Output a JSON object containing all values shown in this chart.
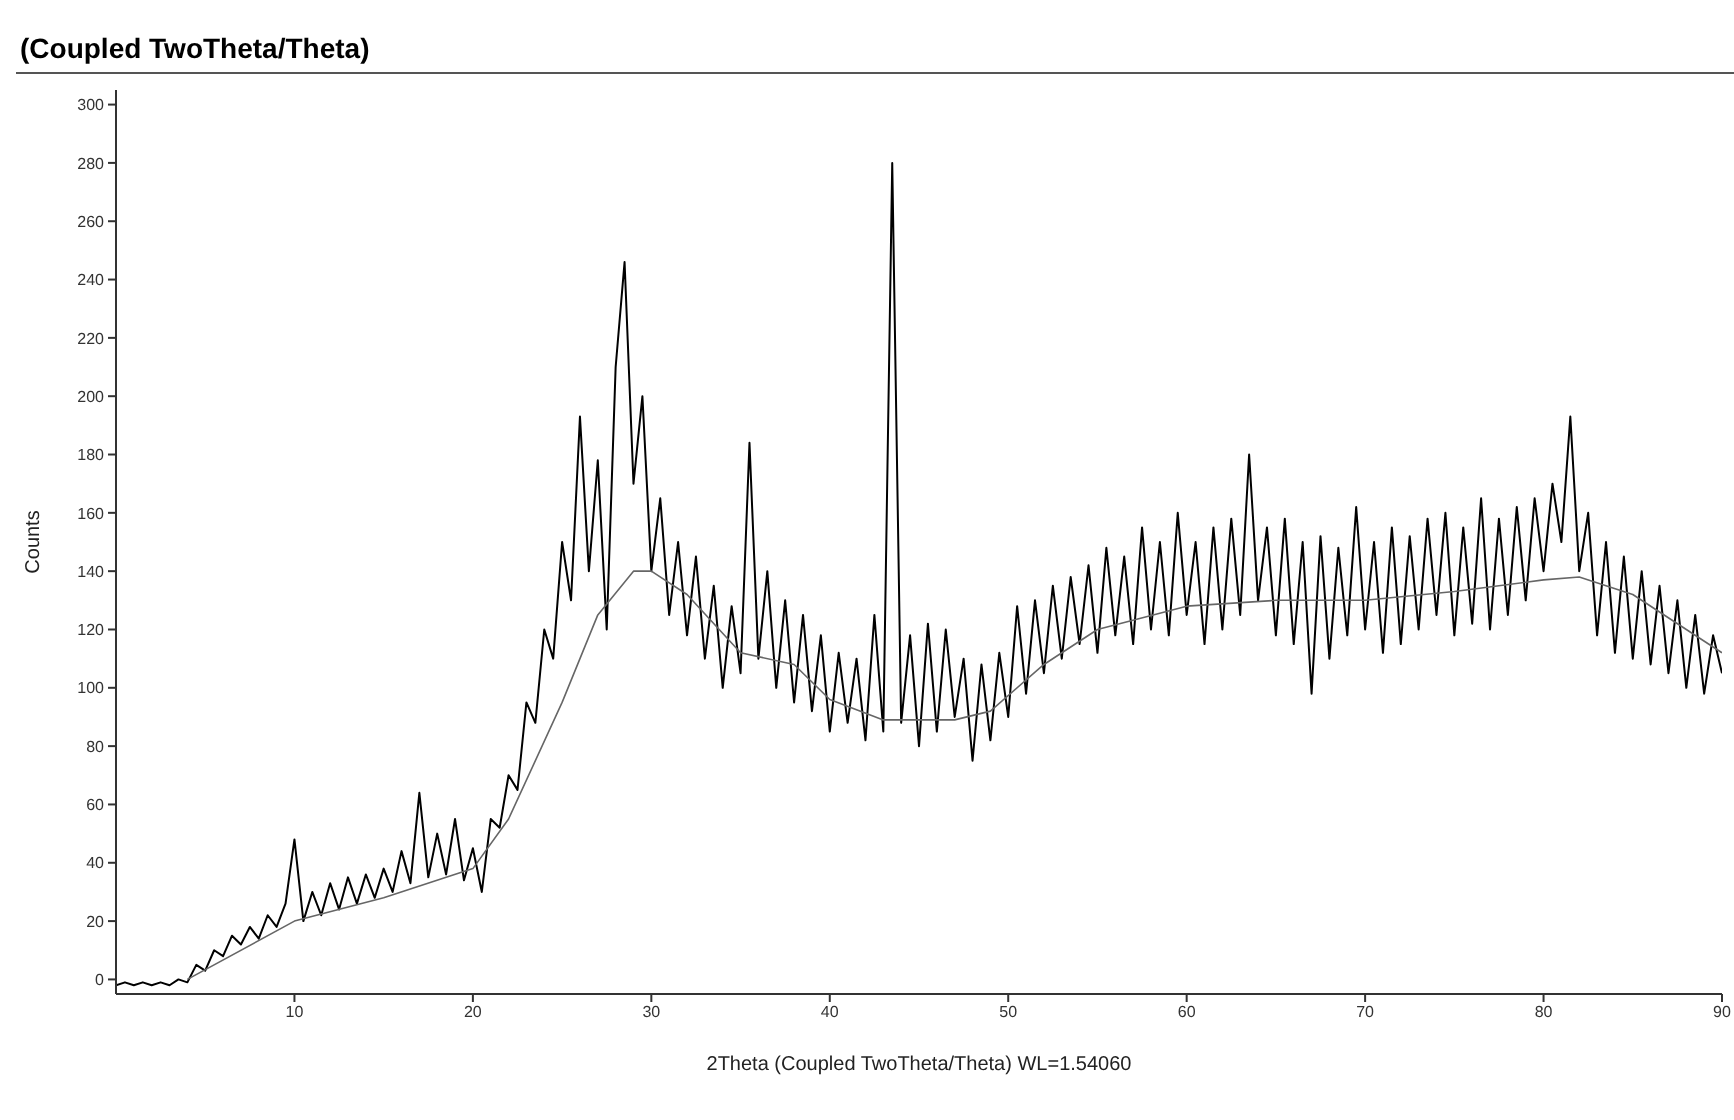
{
  "chart_data": {
    "type": "line",
    "title": "(Coupled TwoTheta/Theta)",
    "xlabel": "2Theta (Coupled TwoTheta/Theta) WL=1.54060",
    "ylabel": "Counts",
    "xlim": [
      0,
      90
    ],
    "xticks": [
      10,
      20,
      30,
      40,
      50,
      60,
      70,
      80,
      90
    ],
    "ylim": [
      -5,
      305
    ],
    "yticks": [
      0,
      20,
      40,
      60,
      80,
      100,
      120,
      140,
      160,
      180,
      200,
      220,
      240,
      260,
      280,
      300
    ],
    "grid": false,
    "legend": false,
    "marker": "none",
    "line_style": "solid",
    "series": [
      {
        "color": "#000000",
        "x": [
          0,
          0.5,
          1,
          1.5,
          2,
          2.5,
          3,
          3.5,
          4,
          4.5,
          5,
          5.5,
          6,
          6.5,
          7,
          7.5,
          8,
          8.5,
          9,
          9.5,
          10,
          10.5,
          11,
          11.5,
          12,
          12.5,
          13,
          13.5,
          14,
          14.5,
          15,
          15.5,
          16,
          16.5,
          17,
          17.5,
          18,
          18.5,
          19,
          19.5,
          20,
          20.5,
          21,
          21.5,
          22,
          22.5,
          23,
          23.5,
          24,
          24.5,
          25,
          25.5,
          26,
          26.5,
          27,
          27.5,
          28,
          28.5,
          29,
          29.5,
          30,
          30.5,
          31,
          31.5,
          32,
          32.5,
          33,
          33.5,
          34,
          34.5,
          35,
          35.5,
          36,
          36.5,
          37,
          37.5,
          38,
          38.5,
          39,
          39.5,
          40,
          40.5,
          41,
          41.5,
          42,
          42.5,
          43,
          43.5,
          44,
          44.5,
          45,
          45.5,
          46,
          46.5,
          47,
          47.5,
          48,
          48.5,
          49,
          49.5,
          50,
          50.5,
          51,
          51.5,
          52,
          52.5,
          53,
          53.5,
          54,
          54.5,
          55,
          55.5,
          56,
          56.5,
          57,
          57.5,
          58,
          58.5,
          59,
          59.5,
          60,
          60.5,
          61,
          61.5,
          62,
          62.5,
          63,
          63.5,
          64,
          64.5,
          65,
          65.5,
          66,
          66.5,
          67,
          67.5,
          68,
          68.5,
          69,
          69.5,
          70,
          70.5,
          71,
          71.5,
          72,
          72.5,
          73,
          73.5,
          74,
          74.5,
          75,
          75.5,
          76,
          76.5,
          77,
          77.5,
          78,
          78.5,
          79,
          79.5,
          80,
          80.5,
          81,
          81.5,
          82,
          82.5,
          83,
          83.5,
          84,
          84.5,
          85,
          85.5,
          86,
          86.5,
          87,
          87.5,
          88,
          88.5,
          89,
          89.5,
          90
        ],
        "values": [
          -2,
          -1,
          -2,
          -1,
          -2,
          -1,
          -2,
          0,
          -1,
          5,
          3,
          10,
          8,
          15,
          12,
          18,
          14,
          22,
          18,
          26,
          48,
          20,
          30,
          22,
          33,
          24,
          35,
          26,
          36,
          28,
          38,
          30,
          44,
          33,
          64,
          35,
          50,
          36,
          55,
          34,
          45,
          30,
          55,
          52,
          70,
          65,
          95,
          88,
          120,
          110,
          150,
          130,
          193,
          140,
          178,
          120,
          210,
          246,
          170,
          200,
          140,
          165,
          125,
          150,
          118,
          145,
          110,
          135,
          100,
          128,
          105,
          184,
          110,
          140,
          100,
          130,
          95,
          125,
          92,
          118,
          85,
          112,
          88,
          110,
          82,
          125,
          85,
          280,
          88,
          118,
          80,
          122,
          85,
          120,
          90,
          110,
          75,
          108,
          82,
          112,
          90,
          128,
          98,
          130,
          105,
          135,
          110,
          138,
          115,
          142,
          112,
          148,
          118,
          145,
          115,
          155,
          120,
          150,
          118,
          160,
          125,
          150,
          115,
          155,
          120,
          158,
          125,
          180,
          130,
          155,
          118,
          158,
          115,
          150,
          98,
          152,
          110,
          148,
          118,
          162,
          120,
          150,
          112,
          155,
          115,
          152,
          120,
          158,
          125,
          160,
          118,
          155,
          122,
          165,
          120,
          158,
          125,
          162,
          130,
          165,
          140,
          170,
          150,
          193,
          140,
          160,
          118,
          150,
          112,
          145,
          110,
          140,
          108,
          135,
          105,
          130,
          100,
          125,
          98,
          118,
          105
        ]
      },
      {
        "color": "#666666",
        "x": [
          4,
          10,
          15,
          20,
          22,
          25,
          27,
          29,
          30,
          32,
          35,
          38,
          40,
          43,
          47,
          49,
          52,
          55,
          60,
          65,
          70,
          75,
          80,
          82,
          85,
          88,
          90
        ],
        "values": [
          0,
          20,
          28,
          38,
          55,
          95,
          125,
          140,
          140,
          132,
          112,
          108,
          96,
          89,
          89,
          92,
          108,
          120,
          128,
          130,
          130,
          133,
          137,
          138,
          132,
          120,
          112
        ]
      }
    ]
  }
}
